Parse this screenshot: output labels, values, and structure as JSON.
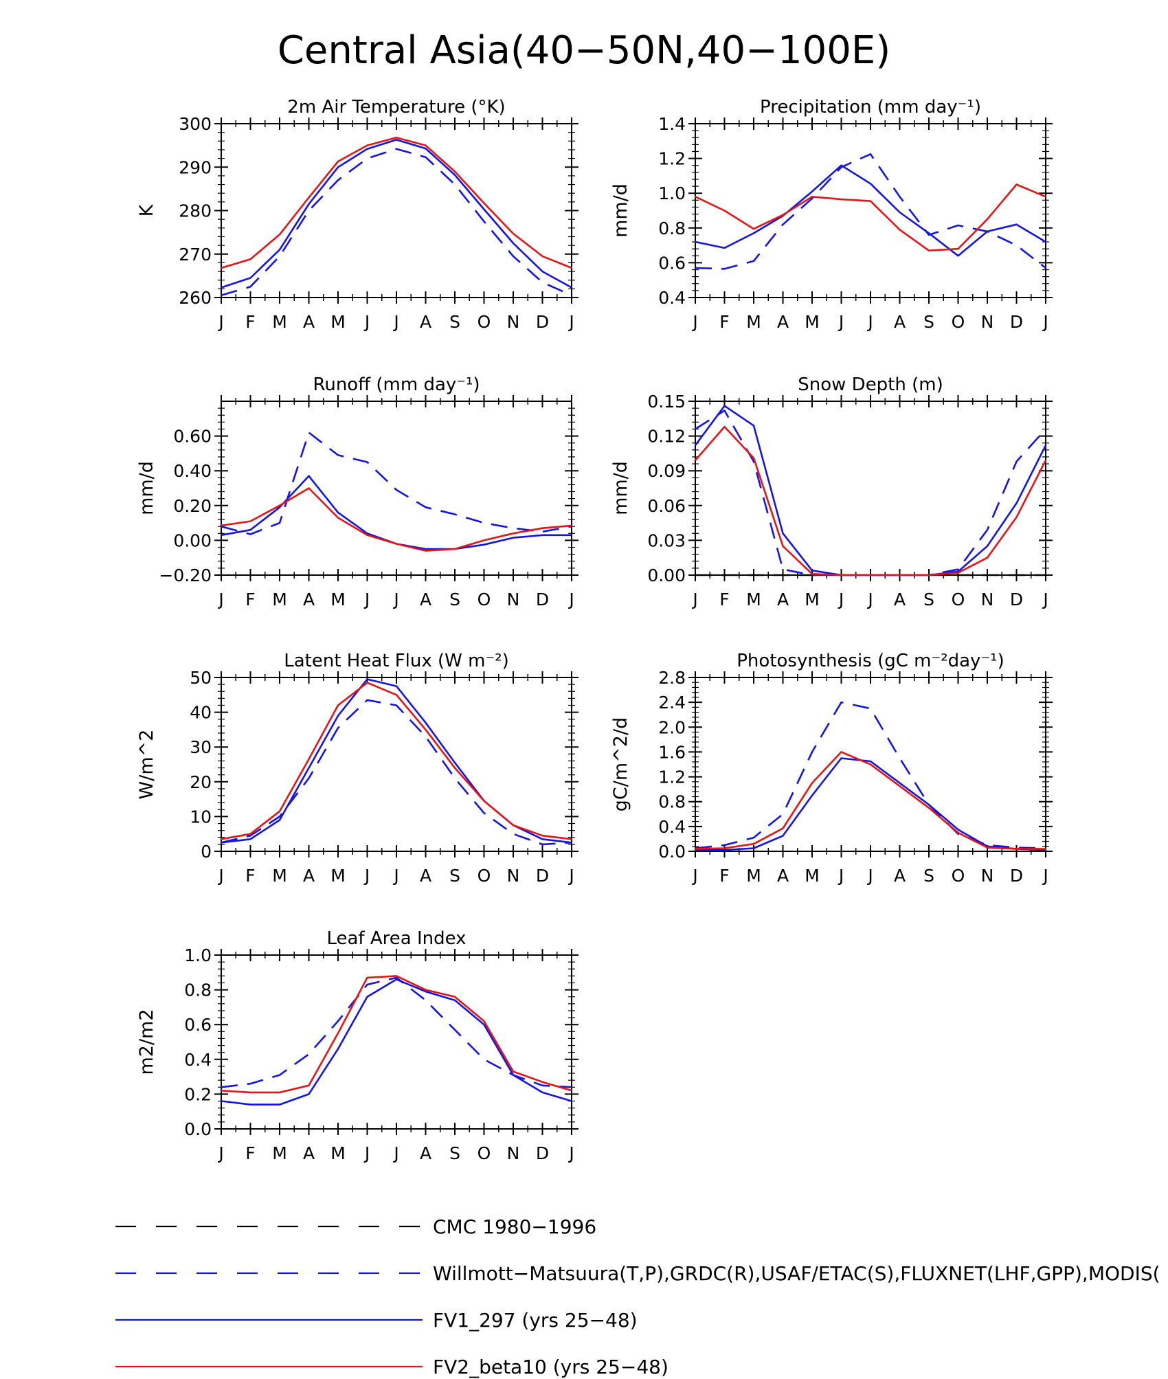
{
  "figure": {
    "title": "Central Asia(40−50N,40−100E)"
  },
  "colors": {
    "cmc": "#000000",
    "obs": "#1414e6",
    "fv1": "#1414e6",
    "fv2": "#e61414"
  },
  "legend": [
    {
      "key": "cmc",
      "label": "CMC 1980−1996",
      "style": "dashed"
    },
    {
      "key": "obs",
      "label": "Willmott−Matsuura(T,P),GRDC(R),USAF/ETAC(S),FLUXNET(LHF,GPP),MODIS(",
      "style": "dashed"
    },
    {
      "key": "fv1",
      "label": "FV1_297 (yrs 25−48)",
      "style": "solid"
    },
    {
      "key": "fv2",
      "label": "FV2_beta10 (yrs 25−48)",
      "style": "solid"
    }
  ],
  "chart_data": [
    {
      "id": "tsa",
      "type": "line",
      "title": "2m Air Temperature (°K)",
      "ylabel": "K",
      "categories": [
        "J",
        "F",
        "M",
        "A",
        "M",
        "J",
        "J",
        "A",
        "S",
        "O",
        "N",
        "D",
        "J"
      ],
      "ylim": [
        260,
        300
      ],
      "yticks": [
        260,
        270,
        280,
        290,
        300
      ],
      "ytick_labels": [
        "260",
        "270",
        "280",
        "290",
        "300"
      ],
      "series": [
        {
          "name": "Willmott-Matsuura",
          "key": "obs",
          "style": "dashed",
          "values": [
            260.5,
            262.5,
            269.5,
            280.0,
            287.0,
            292.0,
            294.2,
            292.3,
            286.0,
            277.5,
            269.5,
            263.5,
            260.5
          ]
        },
        {
          "name": "FV1_297",
          "key": "fv1",
          "style": "solid",
          "values": [
            262.3,
            264.5,
            271.0,
            281.5,
            290.0,
            294.2,
            296.3,
            294.3,
            288.2,
            280.3,
            272.5,
            266.0,
            262.3
          ]
        },
        {
          "name": "FV2_beta10",
          "key": "fv2",
          "style": "solid",
          "values": [
            266.8,
            268.8,
            274.5,
            283.0,
            291.3,
            295.0,
            296.8,
            295.0,
            289.0,
            281.7,
            274.7,
            269.5,
            266.8
          ]
        }
      ]
    },
    {
      "id": "prec",
      "type": "line",
      "title": "Precipitation (mm day⁻¹)",
      "ylabel": "mm/d",
      "categories": [
        "J",
        "F",
        "M",
        "A",
        "M",
        "J",
        "J",
        "A",
        "S",
        "O",
        "N",
        "D",
        "J"
      ],
      "ylim": [
        0.4,
        1.4
      ],
      "yticks": [
        0.4,
        0.6,
        0.8,
        1.0,
        1.2,
        1.4
      ],
      "ytick_labels": [
        "0.4",
        "0.6",
        "0.8",
        "1.0",
        "1.2",
        "1.4"
      ],
      "series": [
        {
          "name": "Willmott-Matsuura",
          "key": "obs",
          "style": "dashed",
          "values": [
            0.57,
            0.565,
            0.61,
            0.82,
            0.97,
            1.15,
            1.225,
            0.98,
            0.76,
            0.815,
            0.78,
            0.7,
            0.57
          ]
        },
        {
          "name": "FV1_297",
          "key": "fv1",
          "style": "solid",
          "values": [
            0.72,
            0.685,
            0.77,
            0.87,
            1.01,
            1.16,
            1.055,
            0.89,
            0.77,
            0.64,
            0.78,
            0.82,
            0.72
          ]
        },
        {
          "name": "FV2_beta10",
          "key": "fv2",
          "style": "solid",
          "values": [
            0.98,
            0.9,
            0.795,
            0.875,
            0.98,
            0.965,
            0.955,
            0.79,
            0.67,
            0.68,
            0.85,
            1.05,
            0.98
          ]
        }
      ]
    },
    {
      "id": "runoff",
      "type": "line",
      "title": "Runoff (mm day⁻¹)",
      "ylabel": "mm/d",
      "categories": [
        "J",
        "F",
        "M",
        "A",
        "M",
        "J",
        "J",
        "A",
        "S",
        "O",
        "N",
        "D",
        "J"
      ],
      "ylim": [
        -0.2,
        0.8
      ],
      "yticks": [
        -0.2,
        0.0,
        0.2,
        0.4,
        0.6
      ],
      "ytick_labels": [
        "−0.20",
        "0.00",
        "0.20",
        "0.40",
        "0.60"
      ],
      "series": [
        {
          "name": "GRDC",
          "key": "obs",
          "style": "dashed",
          "values": [
            0.08,
            0.035,
            0.1,
            0.62,
            0.49,
            0.45,
            0.29,
            0.19,
            0.15,
            0.1,
            0.07,
            0.05,
            0.08
          ]
        },
        {
          "name": "FV1_297",
          "key": "fv1",
          "style": "solid",
          "values": [
            0.03,
            0.06,
            0.19,
            0.37,
            0.16,
            0.04,
            -0.02,
            -0.05,
            -0.05,
            -0.025,
            0.015,
            0.03,
            0.03
          ]
        },
        {
          "name": "FV2_beta10",
          "key": "fv2",
          "style": "solid",
          "values": [
            0.085,
            0.11,
            0.2,
            0.3,
            0.13,
            0.03,
            -0.02,
            -0.06,
            -0.05,
            0.0,
            0.04,
            0.07,
            0.085
          ]
        }
      ]
    },
    {
      "id": "snow",
      "type": "line",
      "title": "Snow Depth (m)",
      "ylabel": "mm/d",
      "categories": [
        "J",
        "F",
        "M",
        "A",
        "M",
        "J",
        "J",
        "A",
        "S",
        "O",
        "N",
        "D",
        "J"
      ],
      "ylim": [
        0.0,
        0.15
      ],
      "yticks": [
        0.0,
        0.03,
        0.06,
        0.09,
        0.12,
        0.15
      ],
      "ytick_labels": [
        "0.00",
        "0.03",
        "0.06",
        "0.09",
        "0.12",
        "0.15"
      ],
      "series": [
        {
          "name": "CMC 1980-1996",
          "key": "cmc",
          "style": "dashed",
          "values": [
            0.0,
            0.0,
            0.0,
            0.0,
            0.0,
            0.0,
            0.0,
            0.0,
            0.0,
            0.0,
            0.0,
            0.0,
            0.0
          ]
        },
        {
          "name": "USAF/ETAC",
          "key": "obs",
          "style": "dashed",
          "values": [
            0.126,
            0.142,
            0.098,
            0.005,
            0.0,
            0.0,
            0.0,
            0.0,
            0.0,
            0.005,
            0.039,
            0.098,
            0.126
          ]
        },
        {
          "name": "FV1_297",
          "key": "fv1",
          "style": "solid",
          "values": [
            0.112,
            0.146,
            0.129,
            0.036,
            0.004,
            0.0,
            0.0,
            0.0,
            0.0,
            0.003,
            0.025,
            0.062,
            0.112
          ]
        },
        {
          "name": "FV2_beta10",
          "key": "fv2",
          "style": "solid",
          "values": [
            0.099,
            0.128,
            0.101,
            0.025,
            0.001,
            0.0,
            0.0,
            0.0,
            0.0,
            0.002,
            0.015,
            0.05,
            0.099
          ]
        }
      ]
    },
    {
      "id": "lhf",
      "type": "line",
      "title": "Latent Heat Flux (W m⁻²)",
      "ylabel": "W/m^2",
      "categories": [
        "J",
        "F",
        "M",
        "A",
        "M",
        "J",
        "J",
        "A",
        "S",
        "O",
        "N",
        "D",
        "J"
      ],
      "ylim": [
        0,
        50
      ],
      "yticks": [
        0,
        10,
        20,
        30,
        40,
        50
      ],
      "ytick_labels": [
        "0",
        "10",
        "20",
        "30",
        "40",
        "50"
      ],
      "series": [
        {
          "name": "FLUXNET",
          "key": "obs",
          "style": "dashed",
          "values": [
            2.5,
            4.5,
            10.0,
            21.0,
            35.5,
            43.5,
            42.0,
            33.0,
            21.0,
            11.0,
            5.0,
            2.0,
            2.5
          ]
        },
        {
          "name": "FV1_297",
          "key": "fv1",
          "style": "solid",
          "values": [
            2.5,
            3.5,
            9.0,
            24.0,
            39.0,
            49.5,
            47.5,
            37.0,
            25.5,
            14.5,
            7.5,
            3.5,
            2.5
          ]
        },
        {
          "name": "FV2_beta10",
          "key": "fv2",
          "style": "solid",
          "values": [
            3.5,
            5.0,
            11.5,
            26.5,
            42.0,
            48.5,
            45.0,
            35.0,
            24.0,
            14.5,
            7.5,
            4.5,
            3.5
          ]
        }
      ]
    },
    {
      "id": "gpp",
      "type": "line",
      "title": "Photosynthesis (gC m⁻²day⁻¹)",
      "ylabel": "gC/m^2/d",
      "categories": [
        "J",
        "F",
        "M",
        "A",
        "M",
        "J",
        "J",
        "A",
        "S",
        "O",
        "N",
        "D",
        "J"
      ],
      "ylim": [
        0.0,
        2.8
      ],
      "yticks": [
        0.0,
        0.4,
        0.8,
        1.2,
        1.6,
        2.0,
        2.4,
        2.8
      ],
      "ytick_labels": [
        "0.0",
        "0.4",
        "0.8",
        "1.2",
        "1.6",
        "2.0",
        "2.4",
        "2.8"
      ],
      "series": [
        {
          "name": "FLUXNET",
          "key": "obs",
          "style": "dashed",
          "values": [
            0.05,
            0.1,
            0.22,
            0.6,
            1.6,
            2.4,
            2.3,
            1.5,
            0.75,
            0.28,
            0.1,
            0.06,
            0.05
          ]
        },
        {
          "name": "FV1_297",
          "key": "fv1",
          "style": "solid",
          "values": [
            0.02,
            0.02,
            0.05,
            0.25,
            0.9,
            1.5,
            1.45,
            1.1,
            0.75,
            0.35,
            0.08,
            0.04,
            0.02
          ]
        },
        {
          "name": "FV2_beta10",
          "key": "fv2",
          "style": "solid",
          "values": [
            0.04,
            0.05,
            0.12,
            0.37,
            1.1,
            1.6,
            1.4,
            1.05,
            0.7,
            0.3,
            0.06,
            0.04,
            0.04
          ]
        }
      ]
    },
    {
      "id": "lai",
      "type": "line",
      "title": "Leaf Area Index",
      "ylabel": "m2/m2",
      "categories": [
        "J",
        "F",
        "M",
        "A",
        "M",
        "J",
        "J",
        "A",
        "S",
        "O",
        "N",
        "D",
        "J"
      ],
      "ylim": [
        0.0,
        1.0
      ],
      "yticks": [
        0.0,
        0.2,
        0.4,
        0.6,
        0.8,
        1.0
      ],
      "ytick_labels": [
        "0.0",
        "0.2",
        "0.4",
        "0.6",
        "0.8",
        "1.0"
      ],
      "series": [
        {
          "name": "MODIS",
          "key": "obs",
          "style": "dashed",
          "values": [
            0.24,
            0.26,
            0.31,
            0.43,
            0.62,
            0.83,
            0.87,
            0.74,
            0.57,
            0.4,
            0.31,
            0.25,
            0.24
          ]
        },
        {
          "name": "FV1_297",
          "key": "fv1",
          "style": "solid",
          "values": [
            0.16,
            0.14,
            0.14,
            0.2,
            0.46,
            0.76,
            0.86,
            0.79,
            0.74,
            0.6,
            0.31,
            0.21,
            0.16
          ]
        },
        {
          "name": "FV2_beta10",
          "key": "fv2",
          "style": "solid",
          "values": [
            0.22,
            0.21,
            0.21,
            0.25,
            0.55,
            0.87,
            0.88,
            0.8,
            0.76,
            0.62,
            0.33,
            0.27,
            0.22
          ]
        }
      ]
    }
  ]
}
